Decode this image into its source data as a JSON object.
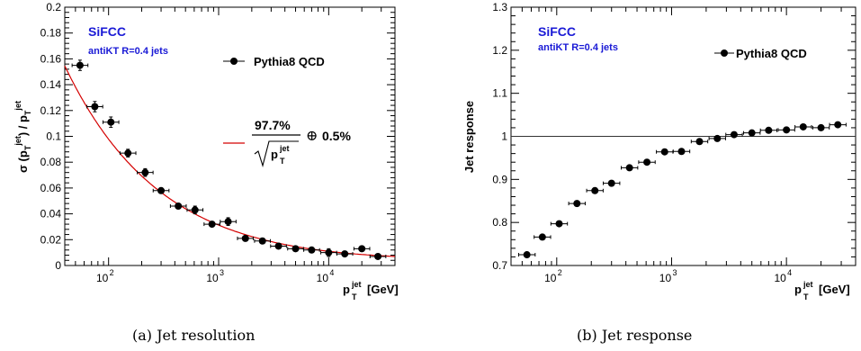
{
  "chart_data": [
    {
      "type": "scatter",
      "caption": "(a) Jet resolution",
      "experiment_label": "SiFCC",
      "jet_label": "antiKT R=0.4 jets",
      "legend": [
        {
          "name": "Pythia8 QCD",
          "marker": "circle",
          "color": "#000000"
        }
      ],
      "fit_label": {
        "numerator": "97.7%",
        "oplus": "⊕",
        "constant": "0.5%"
      },
      "fit_color": "#d40000",
      "fit": {
        "stochastic": 0.977,
        "constant": 0.005
      },
      "xlabel": {
        "base": "p",
        "sub": "T",
        "sup": "jet",
        "unit": "[GeV]"
      },
      "ylabel": {
        "text": "σ (p",
        "sub": "T",
        "sup": "jet",
        "mid": ") / p"
      },
      "x_scale": "log",
      "xlim": [
        40,
        40000
      ],
      "ylim": [
        0,
        0.2
      ],
      "x_ticks": [
        {
          "exp": "2",
          "value": 100
        },
        {
          "exp": "3",
          "value": 1000
        },
        {
          "exp": "4",
          "value": 10000
        }
      ],
      "y_ticks": [
        "0",
        "0.02",
        "0.04",
        "0.06",
        "0.08",
        "0.1",
        "0.12",
        "0.14",
        "0.16",
        "0.18",
        "0.2"
      ],
      "series": [
        {
          "name": "Pythia8 QCD",
          "x": [
            55,
            75,
            105,
            150,
            215,
            300,
            430,
            610,
            870,
            1220,
            1750,
            2500,
            3500,
            5000,
            7000,
            10000,
            14000,
            20000,
            28000
          ],
          "y": [
            0.155,
            0.123,
            0.111,
            0.087,
            0.072,
            0.058,
            0.046,
            0.043,
            0.032,
            0.034,
            0.021,
            0.019,
            0.015,
            0.013,
            0.012,
            0.01,
            0.009,
            0.013,
            0.007
          ],
          "yerr": [
            0.004,
            0.004,
            0.004,
            0.003,
            0.003,
            0.002,
            0.002,
            0.003,
            0.002,
            0.003,
            0.002,
            0.002,
            0.002,
            0.002,
            0.002,
            0.003,
            0.002,
            0.002,
            0.001
          ]
        }
      ]
    },
    {
      "type": "scatter",
      "caption": "(b) Jet response",
      "experiment_label": "SiFCC",
      "jet_label": "antiKT R=0.4 jets",
      "legend": [
        {
          "name": "Pythia8 QCD",
          "marker": "circle",
          "color": "#000000"
        }
      ],
      "reference_line": 1.0,
      "ylabel": {
        "text": "Jet response"
      },
      "xlabel": {
        "base": "p",
        "sub": "T",
        "sup": "jet",
        "unit": "[GeV]"
      },
      "x_scale": "log",
      "xlim": [
        40,
        40000
      ],
      "ylim": [
        0.7,
        1.3
      ],
      "x_ticks": [
        {
          "exp": "2",
          "value": 100
        },
        {
          "exp": "3",
          "value": 1000
        },
        {
          "exp": "4",
          "value": 10000
        }
      ],
      "y_ticks": [
        "0.7",
        "0.8",
        "0.9",
        "1",
        "1.1",
        "1.2",
        "1.3"
      ],
      "series": [
        {
          "name": "Pythia8 QCD",
          "x": [
            55,
            75,
            105,
            150,
            215,
            300,
            430,
            610,
            870,
            1220,
            1750,
            2500,
            3500,
            5000,
            7000,
            10000,
            14000,
            20000,
            28000
          ],
          "y": [
            0.725,
            0.766,
            0.797,
            0.844,
            0.874,
            0.891,
            0.927,
            0.94,
            0.964,
            0.965,
            0.988,
            0.995,
            1.004,
            1.008,
            1.014,
            1.015,
            1.022,
            1.02,
            1.027
          ],
          "yerr": [
            0.002,
            0.002,
            0.002,
            0.002,
            0.002,
            0.002,
            0.002,
            0.002,
            0.002,
            0.002,
            0.002,
            0.002,
            0.002,
            0.002,
            0.002,
            0.002,
            0.002,
            0.002,
            0.002
          ]
        }
      ]
    }
  ]
}
